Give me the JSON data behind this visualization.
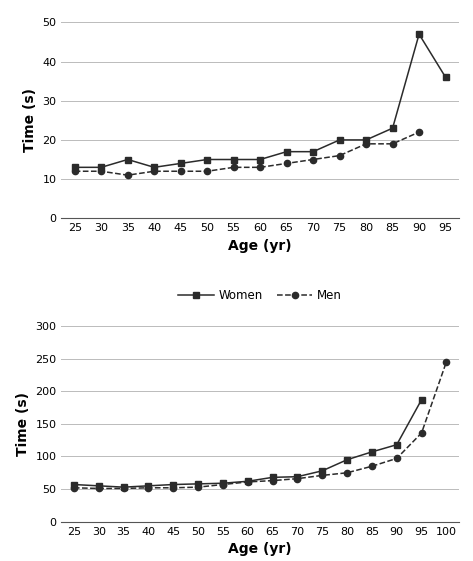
{
  "top": {
    "ages": [
      25,
      30,
      35,
      40,
      45,
      50,
      55,
      60,
      65,
      70,
      75,
      80,
      85,
      90,
      95
    ],
    "men": [
      12,
      12,
      11,
      12,
      12,
      12,
      13,
      13,
      14,
      15,
      16,
      19,
      19,
      22,
      null
    ],
    "women": [
      13,
      13,
      15,
      13,
      14,
      15,
      15,
      15,
      17,
      17,
      20,
      20,
      23,
      47,
      36
    ],
    "ylim": [
      0,
      50
    ],
    "yticks": [
      0,
      10,
      20,
      30,
      40,
      50
    ],
    "ylabel": "Time (s)",
    "xlabel": "Age (yr)",
    "legend_men": "Men",
    "legend_women": "Women",
    "legend_order": [
      "men",
      "women"
    ],
    "xlim": [
      22.5,
      97.5
    ]
  },
  "bottom": {
    "ages": [
      25,
      30,
      35,
      40,
      45,
      50,
      55,
      60,
      65,
      70,
      75,
      80,
      85,
      90,
      95,
      100
    ],
    "men": [
      52,
      51,
      51,
      52,
      52,
      53,
      57,
      61,
      63,
      66,
      71,
      75,
      85,
      97,
      136,
      245
    ],
    "women": [
      57,
      55,
      53,
      55,
      57,
      58,
      59,
      62,
      68,
      69,
      78,
      95,
      107,
      118,
      187,
      null
    ],
    "ylim": [
      0,
      300
    ],
    "yticks": [
      0,
      50,
      100,
      150,
      200,
      250,
      300
    ],
    "ylabel": "Time (s)",
    "xlabel": "Age (yr)",
    "legend_men": "Men",
    "legend_women": "Women",
    "legend_order": [
      "women",
      "men"
    ],
    "xlim": [
      22.5,
      102.5
    ]
  },
  "line_color": "#2b2b2b",
  "marker_square": "s",
  "marker_circle": "o",
  "markersize": 4.5,
  "linewidth": 1.1,
  "grid_color": "#bbbbbb",
  "background": "#ffffff",
  "tick_fontsize": 8,
  "label_fontsize": 10,
  "legend_fontsize": 8.5
}
